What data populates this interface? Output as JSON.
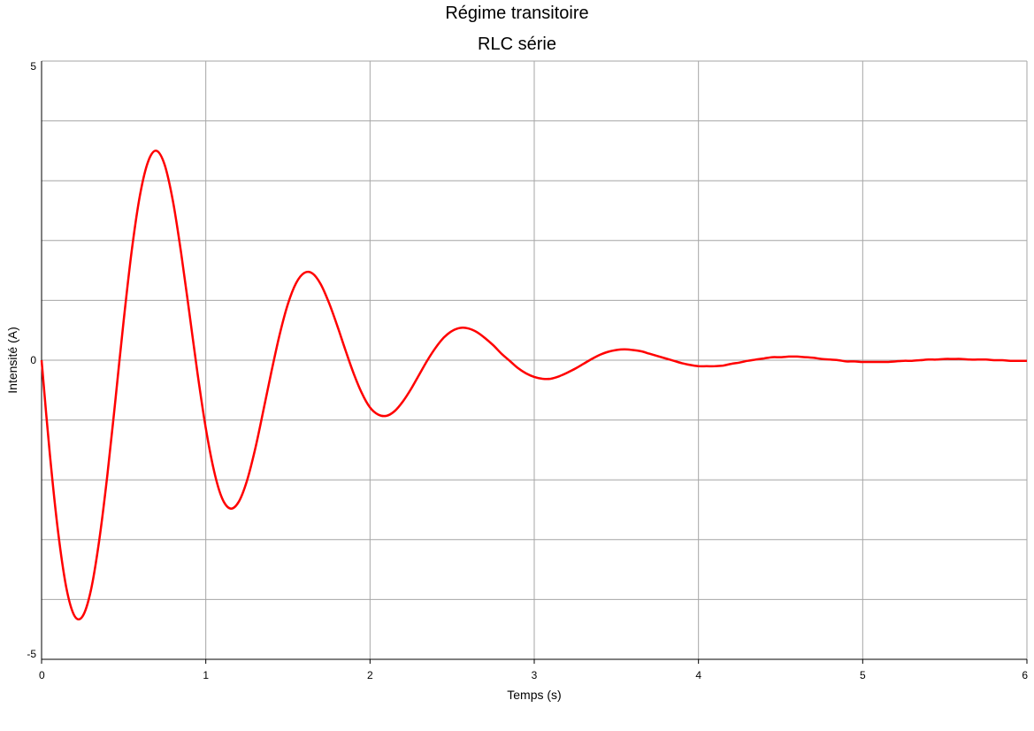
{
  "chart_data": {
    "type": "line",
    "title": "Régime transitoire",
    "subtitle": "RLC série",
    "xlabel": "Temps (s)",
    "ylabel": "Intensité (A)",
    "xlim": [
      0,
      6
    ],
    "ylim": [
      -5,
      5
    ],
    "x_ticks": [
      "0",
      "1",
      "2",
      "3",
      "4",
      "5",
      "6"
    ],
    "y_tick_labels": [
      {
        "value": 5,
        "label": "5"
      },
      {
        "value": 0,
        "label": "0"
      },
      {
        "value": -5,
        "label": "-5"
      }
    ],
    "y_grid_step": 1,
    "x_grid_step": 1,
    "grid": true,
    "series": [
      {
        "color": "#ff0000",
        "x": [
          0,
          0.05,
          0.1,
          0.15,
          0.2,
          0.25,
          0.3,
          0.35,
          0.4,
          0.45,
          0.5,
          0.55,
          0.6,
          0.65,
          0.7,
          0.75,
          0.8,
          0.85,
          0.9,
          0.95,
          1.0,
          1.05,
          1.1,
          1.15,
          1.2,
          1.25,
          1.3,
          1.35,
          1.4,
          1.45,
          1.5,
          1.55,
          1.6,
          1.65,
          1.7,
          1.75,
          1.8,
          1.85,
          1.9,
          1.95,
          2.0,
          2.05,
          2.1,
          2.15,
          2.2,
          2.25,
          2.3,
          2.35,
          2.4,
          2.45,
          2.5,
          2.55,
          2.6,
          2.65,
          2.7,
          2.75,
          2.8,
          2.85,
          2.9,
          2.95,
          3.0,
          3.05,
          3.1,
          3.15,
          3.2,
          3.25,
          3.3,
          3.35,
          3.4,
          3.45,
          3.5,
          3.55,
          3.6,
          3.65,
          3.7,
          3.75,
          3.8,
          3.85,
          3.9,
          3.95,
          4.0,
          4.05,
          4.1,
          4.15,
          4.2,
          4.25,
          4.3,
          4.35,
          4.4,
          4.45,
          4.5,
          4.55,
          4.6,
          4.65,
          4.7,
          4.75,
          4.8,
          4.85,
          4.9,
          4.95,
          5.0,
          5.05,
          5.1,
          5.15,
          5.2,
          5.25,
          5.3,
          5.35,
          5.4,
          5.45,
          5.5,
          5.55,
          5.6,
          5.65,
          5.7,
          5.75,
          5.8,
          5.85,
          5.9,
          5.95,
          6.0
        ],
        "y": [
          0,
          -1.56,
          -2.86,
          -3.79,
          -4.27,
          -4.28,
          -3.85,
          -3.03,
          -1.93,
          -0.65,
          0.66,
          1.85,
          2.77,
          3.33,
          3.5,
          3.26,
          2.66,
          1.79,
          0.79,
          -0.23,
          -1.14,
          -1.85,
          -2.31,
          -2.48,
          -2.37,
          -2.02,
          -1.49,
          -0.85,
          -0.19,
          0.43,
          0.94,
          1.29,
          1.46,
          1.45,
          1.27,
          0.96,
          0.58,
          0.17,
          -0.22,
          -0.55,
          -0.79,
          -0.91,
          -0.93,
          -0.85,
          -0.69,
          -0.48,
          -0.24,
          0.0,
          0.21,
          0.38,
          0.49,
          0.54,
          0.53,
          0.47,
          0.37,
          0.25,
          0.11,
          -0.01,
          -0.13,
          -0.22,
          -0.28,
          -0.31,
          -0.31,
          -0.27,
          -0.21,
          -0.14,
          -0.06,
          0.02,
          0.09,
          0.14,
          0.17,
          0.18,
          0.17,
          0.15,
          0.11,
          0.07,
          0.03,
          -0.01,
          -0.05,
          -0.08,
          -0.1,
          -0.1,
          -0.1,
          -0.09,
          -0.06,
          -0.04,
          -0.01,
          0.01,
          0.03,
          0.05,
          0.05,
          0.06,
          0.06,
          0.05,
          0.04,
          0.02,
          0.01,
          0.0,
          -0.02,
          -0.02,
          -0.03,
          -0.03,
          -0.03,
          -0.03,
          -0.02,
          -0.01,
          -0.01,
          0.0,
          0.01,
          0.01,
          0.02,
          0.02,
          0.02,
          0.01,
          0.01,
          0.01,
          0.0,
          0.0,
          -0.01,
          -0.01,
          -0.01
        ]
      }
    ]
  }
}
